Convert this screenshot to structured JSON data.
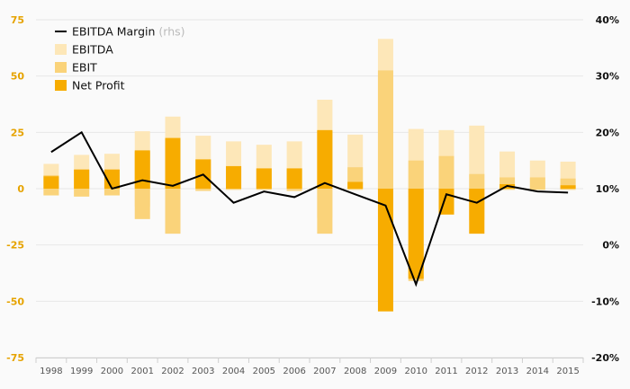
{
  "chart_data": {
    "type": "bar",
    "categories": [
      "1998",
      "1999",
      "2000",
      "2001",
      "2002",
      "2003",
      "2004",
      "2005",
      "2006",
      "2007",
      "2008",
      "2009",
      "2010",
      "2011",
      "2012",
      "2013",
      "2014",
      "2015"
    ],
    "series": [
      {
        "name": "EBITDA",
        "kind": "bar",
        "values": [
          11,
          15,
          15.5,
          25.5,
          32,
          23.5,
          21,
          19.5,
          21,
          39.5,
          24,
          66.5,
          26.5,
          26,
          28,
          16.5,
          12.5,
          12
        ],
        "neg_values": [
          -3,
          -3.5,
          -3,
          -8,
          -11.5,
          -1,
          -0.5,
          -0.5,
          -1,
          -13,
          -0.5,
          -0.5,
          -2,
          -7.5,
          -4.5,
          -0.5,
          -0.5,
          -0.5
        ]
      },
      {
        "name": "EBIT",
        "kind": "bar",
        "values": [
          6,
          8.5,
          8.5,
          16.5,
          22.5,
          13,
          10,
          9,
          9,
          25.5,
          9.5,
          52.5,
          12.5,
          14.5,
          6.5,
          5,
          5,
          4.5
        ],
        "neg_values": [
          -3,
          -3.5,
          -3,
          -13.5,
          -20,
          -1,
          -0.5,
          -0.5,
          -1,
          -20,
          -0.5,
          -0.5,
          -41,
          -8,
          -14,
          -0.5,
          -0.5,
          -0.5
        ]
      },
      {
        "name": "Net Profit",
        "kind": "bar",
        "values": [
          5.5,
          8.5,
          8.5,
          17,
          22.5,
          13,
          10,
          9,
          9,
          26,
          3,
          0,
          0,
          0,
          0,
          2,
          0,
          1.5
        ],
        "neg_values": [
          0,
          0,
          0,
          0,
          0,
          0,
          0,
          0,
          0,
          0,
          0,
          -54.5,
          -40,
          -11.5,
          -20,
          0,
          0,
          0
        ]
      },
      {
        "name": "EBITDA Margin",
        "kind": "line",
        "axis": "right",
        "values": [
          16.5,
          20,
          10,
          11.5,
          10.5,
          12.5,
          7.5,
          9.5,
          8.5,
          11,
          9,
          7,
          -7,
          9,
          7.5,
          10.5,
          9.5,
          9.3
        ]
      }
    ],
    "legend": [
      {
        "label": "EBITDA Margin",
        "suffix": "(rhs)",
        "color": "#000000",
        "kind": "line"
      },
      {
        "label": "EBITDA",
        "color": "#fde7b8",
        "kind": "bar"
      },
      {
        "label": "EBIT",
        "color": "#fad37a",
        "kind": "bar"
      },
      {
        "label": "Net Profit",
        "color": "#f7ac00",
        "kind": "bar"
      }
    ],
    "left_axis": {
      "range": [
        -75,
        75
      ],
      "ticks": [
        75,
        50,
        25,
        0,
        -25,
        -50,
        -75
      ],
      "tick_labels": [
        "75",
        "50",
        "25",
        "0",
        "-25",
        "-50",
        "-75"
      ],
      "color": "#e6a300"
    },
    "right_axis": {
      "range": [
        -20,
        40
      ],
      "ticks": [
        40,
        30,
        20,
        10,
        0,
        -10,
        -20
      ],
      "tick_labels": [
        "40%",
        "30%",
        "20%",
        "10%",
        "0%",
        "-10%",
        "-20%"
      ],
      "color": "#111111"
    },
    "grid": true,
    "legend_position": "top-left"
  }
}
